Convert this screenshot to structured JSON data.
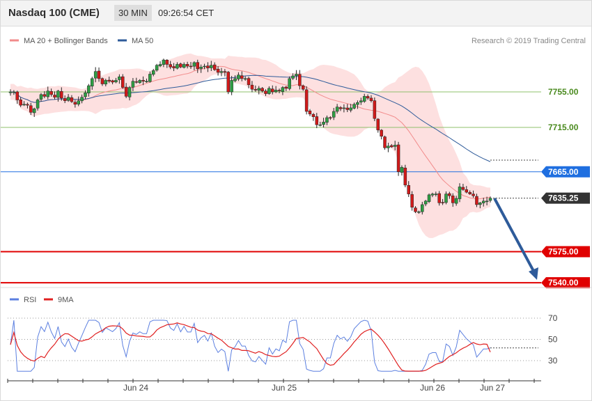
{
  "header": {
    "title": "Nasdaq 100 (CME)",
    "timeframe": "30 MIN",
    "time": "09:26:54 CET"
  },
  "price_legend": [
    {
      "label": "MA 20 + Bollinger Bands",
      "color": "#f28b8b"
    },
    {
      "label": "MA 50",
      "color": "#2e5b9a"
    }
  ],
  "copyright": "Research © 2019 Trading Central",
  "rsi_legend": [
    {
      "label": "RSI",
      "color": "#5b7fe0"
    },
    {
      "label": "9MA",
      "color": "#e02020"
    }
  ],
  "chart_data": [
    {
      "type": "candlestick",
      "x_ticks": [
        "Jun 24",
        "Jun 25",
        "Jun 26",
        "Jun 27"
      ],
      "levels": [
        {
          "value": 7755.0,
          "label": "7755.00",
          "color": "#8fc06b",
          "kind": "resistance"
        },
        {
          "value": 7715.0,
          "label": "7715.00",
          "color": "#8fc06b",
          "kind": "resistance"
        },
        {
          "value": 7665.0,
          "label": "7665.00",
          "color": "#1f6fe0",
          "kind": "pivot"
        },
        {
          "value": 7635.25,
          "label": "7635.25",
          "color": "#333333",
          "kind": "last"
        },
        {
          "value": 7575.0,
          "label": "7575.00",
          "color": "#e00000",
          "kind": "target"
        },
        {
          "value": 7540.0,
          "label": "7540.00",
          "color": "#e00000",
          "kind": "target"
        }
      ],
      "last_price": 7635.25,
      "close": [
        7755,
        7755,
        7746,
        7740,
        7741,
        7740,
        7732,
        7736,
        7746,
        7752,
        7750,
        7756,
        7752,
        7749,
        7756,
        7748,
        7745,
        7749,
        7744,
        7741,
        7745,
        7749,
        7754,
        7762,
        7770,
        7778,
        7770,
        7764,
        7768,
        7767,
        7766,
        7768,
        7772,
        7760,
        7750,
        7760,
        7767,
        7766,
        7768,
        7767,
        7767,
        7775,
        7779,
        7785,
        7786,
        7791,
        7786,
        7783,
        7782,
        7786,
        7783,
        7786,
        7784,
        7784,
        7788,
        7781,
        7783,
        7784,
        7782,
        7785,
        7780,
        7777,
        7778,
        7777,
        7755,
        7768,
        7770,
        7774,
        7770,
        7770,
        7763,
        7758,
        7757,
        7759,
        7756,
        7753,
        7759,
        7755,
        7757,
        7756,
        7760,
        7759,
        7770,
        7773,
        7775,
        7762,
        7758,
        7733,
        7730,
        7727,
        7718,
        7718,
        7721,
        7726,
        7726,
        7733,
        7738,
        7736,
        7737,
        7735,
        7737,
        7741,
        7743,
        7745,
        7750,
        7748,
        7745,
        7725,
        7712,
        7705,
        7692,
        7694,
        7693,
        7695,
        7665,
        7670,
        7650,
        7640,
        7625,
        7620,
        7620,
        7628,
        7632,
        7639,
        7640,
        7640,
        7630,
        7630,
        7640,
        7638,
        7630,
        7635,
        7648,
        7645,
        7642,
        7640,
        7638,
        7628,
        7630,
        7632,
        7632,
        7635.25
      ],
      "ma50_end": 7677,
      "rsi_axis_ticks": [
        30,
        50,
        70
      ],
      "rsi_last": 42,
      "rsi_9ma_last": 38
    }
  ]
}
